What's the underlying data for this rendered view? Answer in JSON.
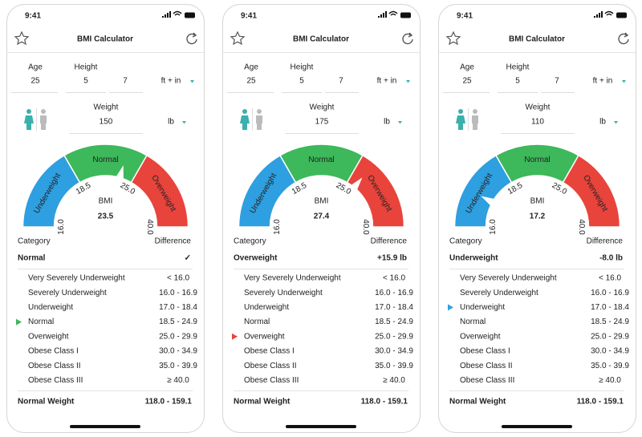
{
  "screens": [
    {
      "time": "9:41",
      "title": "BMI Calculator",
      "accent": "#3db85a",
      "age_label": "Age",
      "age": "25",
      "height_label": "Height",
      "height_ft": "5",
      "height_in": "7",
      "height_unit": "ft + in",
      "weight_label": "Weight",
      "weight": "150",
      "weight_unit": "lb",
      "gauge": {
        "segments": [
          "Underweight",
          "Normal",
          "Overweight"
        ],
        "ticks": [
          "16.0",
          "18.5",
          "25.0",
          "40.0"
        ],
        "label": "BMI",
        "value": "23.5"
      },
      "category_label": "Category",
      "difference_label": "Difference",
      "category": "Normal",
      "difference": "✓",
      "selected_row": 3,
      "rows": [
        [
          "Very Severely Underweight",
          "< 16.0"
        ],
        [
          "Severely Underweight",
          "16.0 - 16.9"
        ],
        [
          "Underweight",
          "17.0 - 18.4"
        ],
        [
          "Normal",
          "18.5 - 24.9"
        ],
        [
          "Overweight",
          "25.0 - 29.9"
        ],
        [
          "Obese Class I",
          "30.0 - 34.9"
        ],
        [
          "Obese Class II",
          "35.0 - 39.9"
        ],
        [
          "Obese Class III",
          "≥ 40.0"
        ]
      ],
      "footer_label": "Normal Weight",
      "footer_value": "118.0 - 159.1"
    },
    {
      "time": "9:41",
      "title": "BMI Calculator",
      "accent": "#e8443c",
      "age_label": "Age",
      "age": "25",
      "height_label": "Height",
      "height_ft": "5",
      "height_in": "7",
      "height_unit": "ft + in",
      "weight_label": "Weight",
      "weight": "175",
      "weight_unit": "lb",
      "gauge": {
        "segments": [
          "Underweight",
          "Normal",
          "Overweight"
        ],
        "ticks": [
          "16.0",
          "18.5",
          "25.0",
          "40.0"
        ],
        "label": "BMI",
        "value": "27.4"
      },
      "category_label": "Category",
      "difference_label": "Difference",
      "category": "Overweight",
      "difference": "+15.9 lb",
      "selected_row": 4,
      "rows": [
        [
          "Very Severely Underweight",
          "< 16.0"
        ],
        [
          "Severely Underweight",
          "16.0 - 16.9"
        ],
        [
          "Underweight",
          "17.0 - 18.4"
        ],
        [
          "Normal",
          "18.5 - 24.9"
        ],
        [
          "Overweight",
          "25.0 - 29.9"
        ],
        [
          "Obese Class I",
          "30.0 - 34.9"
        ],
        [
          "Obese Class II",
          "35.0 - 39.9"
        ],
        [
          "Obese Class III",
          "≥ 40.0"
        ]
      ],
      "footer_label": "Normal Weight",
      "footer_value": "118.0 - 159.1"
    },
    {
      "time": "9:41",
      "title": "BMI Calculator",
      "accent": "#2e9fe0",
      "age_label": "Age",
      "age": "25",
      "height_label": "Height",
      "height_ft": "5",
      "height_in": "7",
      "height_unit": "ft + in",
      "weight_label": "Weight",
      "weight": "110",
      "weight_unit": "lb",
      "gauge": {
        "segments": [
          "Underweight",
          "Normal",
          "Overweight"
        ],
        "ticks": [
          "16.0",
          "18.5",
          "25.0",
          "40.0"
        ],
        "label": "BMI",
        "value": "17.2"
      },
      "category_label": "Category",
      "difference_label": "Difference",
      "category": "Underweight",
      "difference": "-8.0 lb",
      "selected_row": 2,
      "rows": [
        [
          "Very Severely Underweight",
          "< 16.0"
        ],
        [
          "Severely Underweight",
          "16.0 - 16.9"
        ],
        [
          "Underweight",
          "17.0 - 18.4"
        ],
        [
          "Normal",
          "18.5 - 24.9"
        ],
        [
          "Overweight",
          "25.0 - 29.9"
        ],
        [
          "Obese Class I",
          "30.0 - 34.9"
        ],
        [
          "Obese Class II",
          "35.0 - 39.9"
        ],
        [
          "Obese Class III",
          "≥ 40.0"
        ]
      ],
      "footer_label": "Normal Weight",
      "footer_value": "118.0 - 159.1"
    }
  ]
}
